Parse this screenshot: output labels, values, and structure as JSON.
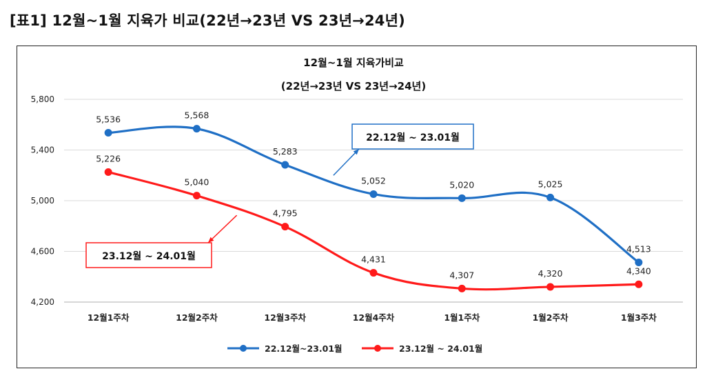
{
  "page": {
    "title": "[표1]  12월~1월  지육가  비교(22년→23년  VS  23년→24년)"
  },
  "chart_data": {
    "type": "line",
    "title": "12월~1월 지육가비교",
    "subtitle": "(22년→23년 VS 23년→24년)",
    "categories": [
      "12월1주차",
      "12월2주차",
      "12월3주차",
      "12월4주차",
      "1월1주차",
      "1월2주차",
      "1월3주차"
    ],
    "ylim": [
      4200,
      5800
    ],
    "yticks": [
      4200,
      4600,
      5000,
      5400,
      5800
    ],
    "ytick_labels": [
      "4,200",
      "4,600",
      "5,000",
      "5,400",
      "5,800"
    ],
    "grid": true,
    "legend_position": "bottom",
    "series": [
      {
        "name": "22.12월~23.01월",
        "color": "#1f6fc5",
        "values": [
          5536,
          5568,
          5283,
          5052,
          5020,
          5025,
          4513
        ],
        "labels": [
          "5,536",
          "5,568",
          "5,283",
          "5,052",
          "5,020",
          "5,025",
          "4,513"
        ]
      },
      {
        "name": "23.12월 ~ 24.01월",
        "color": "#ff1a1a",
        "values": [
          5226,
          5040,
          4795,
          4431,
          4307,
          4320,
          4340
        ],
        "labels": [
          "5,226",
          "5,040",
          "4,795",
          "4,431",
          "4,307",
          "4,320",
          "4,340"
        ]
      }
    ],
    "annotations": [
      {
        "text": "22.12월 ~ 23.01월",
        "series": 0,
        "color": "#1f6fc5"
      },
      {
        "text": "23.12월 ~ 24.01월",
        "series": 1,
        "color": "#ff1a1a"
      }
    ]
  }
}
